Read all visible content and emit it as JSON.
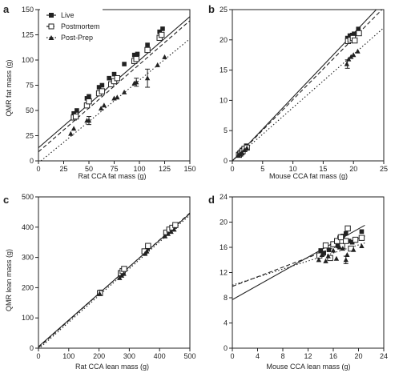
{
  "chart_data": [
    {
      "panel": "a",
      "type": "scatter",
      "xlabel": "Rat CCA fat mass (g)",
      "ylabel": "QMR fat mass (g)",
      "xlim": [
        0,
        150
      ],
      "ylim": [
        0,
        150
      ],
      "xticks": [
        0,
        25,
        50,
        75,
        100,
        125,
        150
      ],
      "yticks": [
        0,
        25,
        50,
        75,
        100,
        125,
        150
      ],
      "legend": {
        "placement": "top-left",
        "entries": [
          "Live",
          "Postmortem",
          "Post-Prep"
        ]
      },
      "series": [
        {
          "name": "Live",
          "marker": "filled-square",
          "line": "solid",
          "points": [
            [
              35,
              47
            ],
            [
              38,
              50
            ],
            [
              48,
              62
            ],
            [
              50,
              64
            ],
            [
              60,
              73
            ],
            [
              63,
              75
            ],
            [
              70,
              82
            ],
            [
              75,
              86
            ],
            [
              85,
              96
            ],
            [
              95,
              105
            ],
            [
              98,
              106
            ],
            [
              108,
              115
            ],
            [
              120,
              128
            ],
            [
              123,
              131
            ]
          ],
          "fit": [
            [
              0,
              13
            ],
            [
              150,
              143
            ]
          ]
        },
        {
          "name": "Postmortem",
          "marker": "open-square",
          "line": "dashed",
          "points": [
            [
              35,
              43
            ],
            [
              37,
              44
            ],
            [
              48,
              55
            ],
            [
              50,
              59
            ],
            [
              60,
              67
            ],
            [
              63,
              69
            ],
            [
              72,
              76
            ],
            [
              75,
              79
            ],
            [
              78,
              82
            ],
            [
              95,
              99
            ],
            [
              97,
              101
            ],
            [
              108,
              110
            ],
            [
              120,
              122
            ],
            [
              122,
              125
            ]
          ],
          "fit": [
            [
              0,
              9
            ],
            [
              150,
              139
            ]
          ]
        },
        {
          "name": "Post-Prep",
          "marker": "filled-triangle",
          "line": "dotted",
          "points": [
            [
              32,
              27
            ],
            [
              35,
              32
            ],
            [
              48,
              40
            ],
            [
              50,
              40
            ],
            [
              62,
              52
            ],
            [
              65,
              55
            ],
            [
              75,
              62
            ],
            [
              78,
              63
            ],
            [
              85,
              68
            ],
            [
              95,
              77
            ],
            [
              97,
              78
            ],
            [
              108,
              82
            ],
            [
              118,
              95
            ],
            [
              125,
              103
            ]
          ],
          "errorbars": [
            [
              50,
              40,
              4
            ],
            [
              97,
              78,
              4
            ],
            [
              108,
              82,
              9
            ]
          ],
          "fit": [
            [
              0,
              -2
            ],
            [
              150,
              121
            ]
          ]
        }
      ]
    },
    {
      "panel": "b",
      "type": "scatter",
      "xlabel": "Mouse CCA fat mass (g)",
      "ylabel": "",
      "xlim": [
        0,
        25
      ],
      "ylim": [
        0,
        25
      ],
      "xticks": [
        0,
        5,
        10,
        15,
        20,
        25
      ],
      "yticks": [
        0,
        5,
        10,
        15,
        20,
        25
      ],
      "series": [
        {
          "name": "Live",
          "marker": "filled-square",
          "line": "solid",
          "points": [
            [
              1.0,
              1.1
            ],
            [
              1.2,
              1.3
            ],
            [
              1.4,
              1.5
            ],
            [
              1.6,
              1.8
            ],
            [
              1.8,
              1.9
            ],
            [
              2.0,
              2.1
            ],
            [
              2.3,
              2.5
            ],
            [
              19.0,
              20.3
            ],
            [
              19.4,
              20.7
            ],
            [
              19.8,
              20.8
            ],
            [
              20.1,
              21.0
            ],
            [
              20.8,
              21.8
            ]
          ],
          "fit": [
            [
              0,
              0
            ],
            [
              25,
              26.3
            ]
          ]
        },
        {
          "name": "Postmortem",
          "marker": "open-square",
          "line": "dashed",
          "points": [
            [
              1.1,
              1.0
            ],
            [
              1.3,
              1.2
            ],
            [
              1.5,
              1.4
            ],
            [
              1.7,
              1.6
            ],
            [
              2.0,
              2.0
            ],
            [
              2.4,
              2.2
            ],
            [
              19.1,
              19.8
            ],
            [
              19.5,
              20.0
            ],
            [
              19.9,
              20.3
            ],
            [
              20.2,
              19.9
            ],
            [
              20.9,
              21.1
            ]
          ],
          "fit": [
            [
              0,
              0
            ],
            [
              25,
              25.3
            ]
          ]
        },
        {
          "name": "Post-Prep",
          "marker": "filled-triangle",
          "line": "dotted",
          "points": [
            [
              1.0,
              0.9
            ],
            [
              1.3,
              1.1
            ],
            [
              1.6,
              1.4
            ],
            [
              2.0,
              1.8
            ],
            [
              2.4,
              2.1
            ],
            [
              18.9,
              16.0
            ],
            [
              19.2,
              16.8
            ],
            [
              19.6,
              17.2
            ],
            [
              20.0,
              17.5
            ],
            [
              20.7,
              18.1
            ]
          ],
          "errorbars": [
            [
              19.0,
              16.0,
              0.7
            ]
          ],
          "fit": [
            [
              0,
              0
            ],
            [
              25,
              22.0
            ]
          ]
        }
      ]
    },
    {
      "panel": "c",
      "type": "scatter",
      "xlabel": "Rat CCA lean mass (g)",
      "ylabel": "QMR lean mass (g)",
      "xlim": [
        0,
        500
      ],
      "ylim": [
        0,
        500
      ],
      "xticks": [
        0,
        100,
        200,
        300,
        400,
        500
      ],
      "yticks": [
        0,
        100,
        200,
        300,
        400,
        500
      ],
      "series": [
        {
          "name": "Live",
          "marker": "filled-square",
          "line": "solid",
          "points": [
            [
              205,
              186
            ],
            [
              270,
              245
            ],
            [
              275,
              250
            ],
            [
              280,
              256
            ],
            [
              285,
              260
            ],
            [
              350,
              318
            ],
            [
              360,
              330
            ],
            [
              420,
              380
            ],
            [
              430,
              388
            ],
            [
              440,
              395
            ],
            [
              450,
              402
            ]
          ],
          "fit": [
            [
              0,
              5
            ],
            [
              500,
              445
            ]
          ]
        },
        {
          "name": "Postmortem",
          "marker": "open-square",
          "line": "dashed",
          "points": [
            [
              203,
              182
            ],
            [
              272,
              248
            ],
            [
              278,
              255
            ],
            [
              283,
              262
            ],
            [
              350,
              320
            ],
            [
              362,
              338
            ],
            [
              422,
              382
            ],
            [
              432,
              392
            ],
            [
              442,
              398
            ],
            [
              452,
              407
            ]
          ],
          "fit": [
            [
              0,
              2
            ],
            [
              500,
              447
            ]
          ]
        },
        {
          "name": "Post-Prep",
          "marker": "filled-triangle",
          "line": "dotted",
          "points": [
            [
              202,
              180
            ],
            [
              268,
              232
            ],
            [
              275,
              240
            ],
            [
              282,
              246
            ],
            [
              352,
              312
            ],
            [
              358,
              320
            ],
            [
              418,
              370
            ],
            [
              428,
              378
            ],
            [
              438,
              385
            ],
            [
              448,
              392
            ]
          ],
          "fit": [
            [
              0,
              -3
            ],
            [
              500,
              440
            ]
          ]
        }
      ]
    },
    {
      "panel": "d",
      "type": "scatter",
      "xlabel": "Mouse CCA lean mass (g)",
      "ylabel": "",
      "xlim": [
        0,
        24
      ],
      "ylim": [
        0,
        24
      ],
      "xticks": [
        0,
        4,
        8,
        12,
        16,
        20,
        24
      ],
      "yticks": [
        0,
        4,
        8,
        12,
        16,
        20,
        24
      ],
      "series": [
        {
          "name": "Live",
          "marker": "filled-square",
          "line": "solid",
          "points": [
            [
              14.0,
              15.5
            ],
            [
              14.5,
              15.1
            ],
            [
              15.3,
              15.6
            ],
            [
              16.0,
              16.4
            ],
            [
              16.8,
              16.2
            ],
            [
              17.0,
              17.5
            ],
            [
              17.5,
              17.8
            ],
            [
              18.0,
              18.2
            ],
            [
              18.5,
              17.0
            ],
            [
              19.0,
              16.8
            ],
            [
              20.5,
              18.5
            ]
          ],
          "fit": [
            [
              0,
              7.7
            ],
            [
              21,
              19.5
            ]
          ]
        },
        {
          "name": "Postmortem",
          "marker": "open-square",
          "line": "dashed",
          "points": [
            [
              13.8,
              14.7
            ],
            [
              14.8,
              16.3
            ],
            [
              15.5,
              14.3
            ],
            [
              16.0,
              16.5
            ],
            [
              16.6,
              17.0
            ],
            [
              17.2,
              17.6
            ],
            [
              17.4,
              16.2
            ],
            [
              18.0,
              17.0
            ],
            [
              18.3,
              19.0
            ],
            [
              18.8,
              15.8
            ],
            [
              19.5,
              17.2
            ],
            [
              20.5,
              17.5
            ]
          ],
          "fit": [
            [
              0,
              9.8
            ],
            [
              21,
              17.8
            ]
          ]
        },
        {
          "name": "Post-Prep",
          "marker": "filled-triangle",
          "line": "dotted",
          "points": [
            [
              13.7,
              14.0
            ],
            [
              14.2,
              14.8
            ],
            [
              14.8,
              13.8
            ],
            [
              15.2,
              14.6
            ],
            [
              16.0,
              15.5
            ],
            [
              16.5,
              14.2
            ],
            [
              17.0,
              16.0
            ],
            [
              17.5,
              15.8
            ],
            [
              18.0,
              14.0
            ],
            [
              18.2,
              14.8
            ],
            [
              19.2,
              15.6
            ],
            [
              20.5,
              16.2
            ]
          ],
          "errorbars": [
            [
              18.0,
              14.0,
              0.6
            ]
          ],
          "fit": [
            [
              0,
              10.0
            ],
            [
              21,
              16.7
            ]
          ]
        }
      ]
    }
  ]
}
